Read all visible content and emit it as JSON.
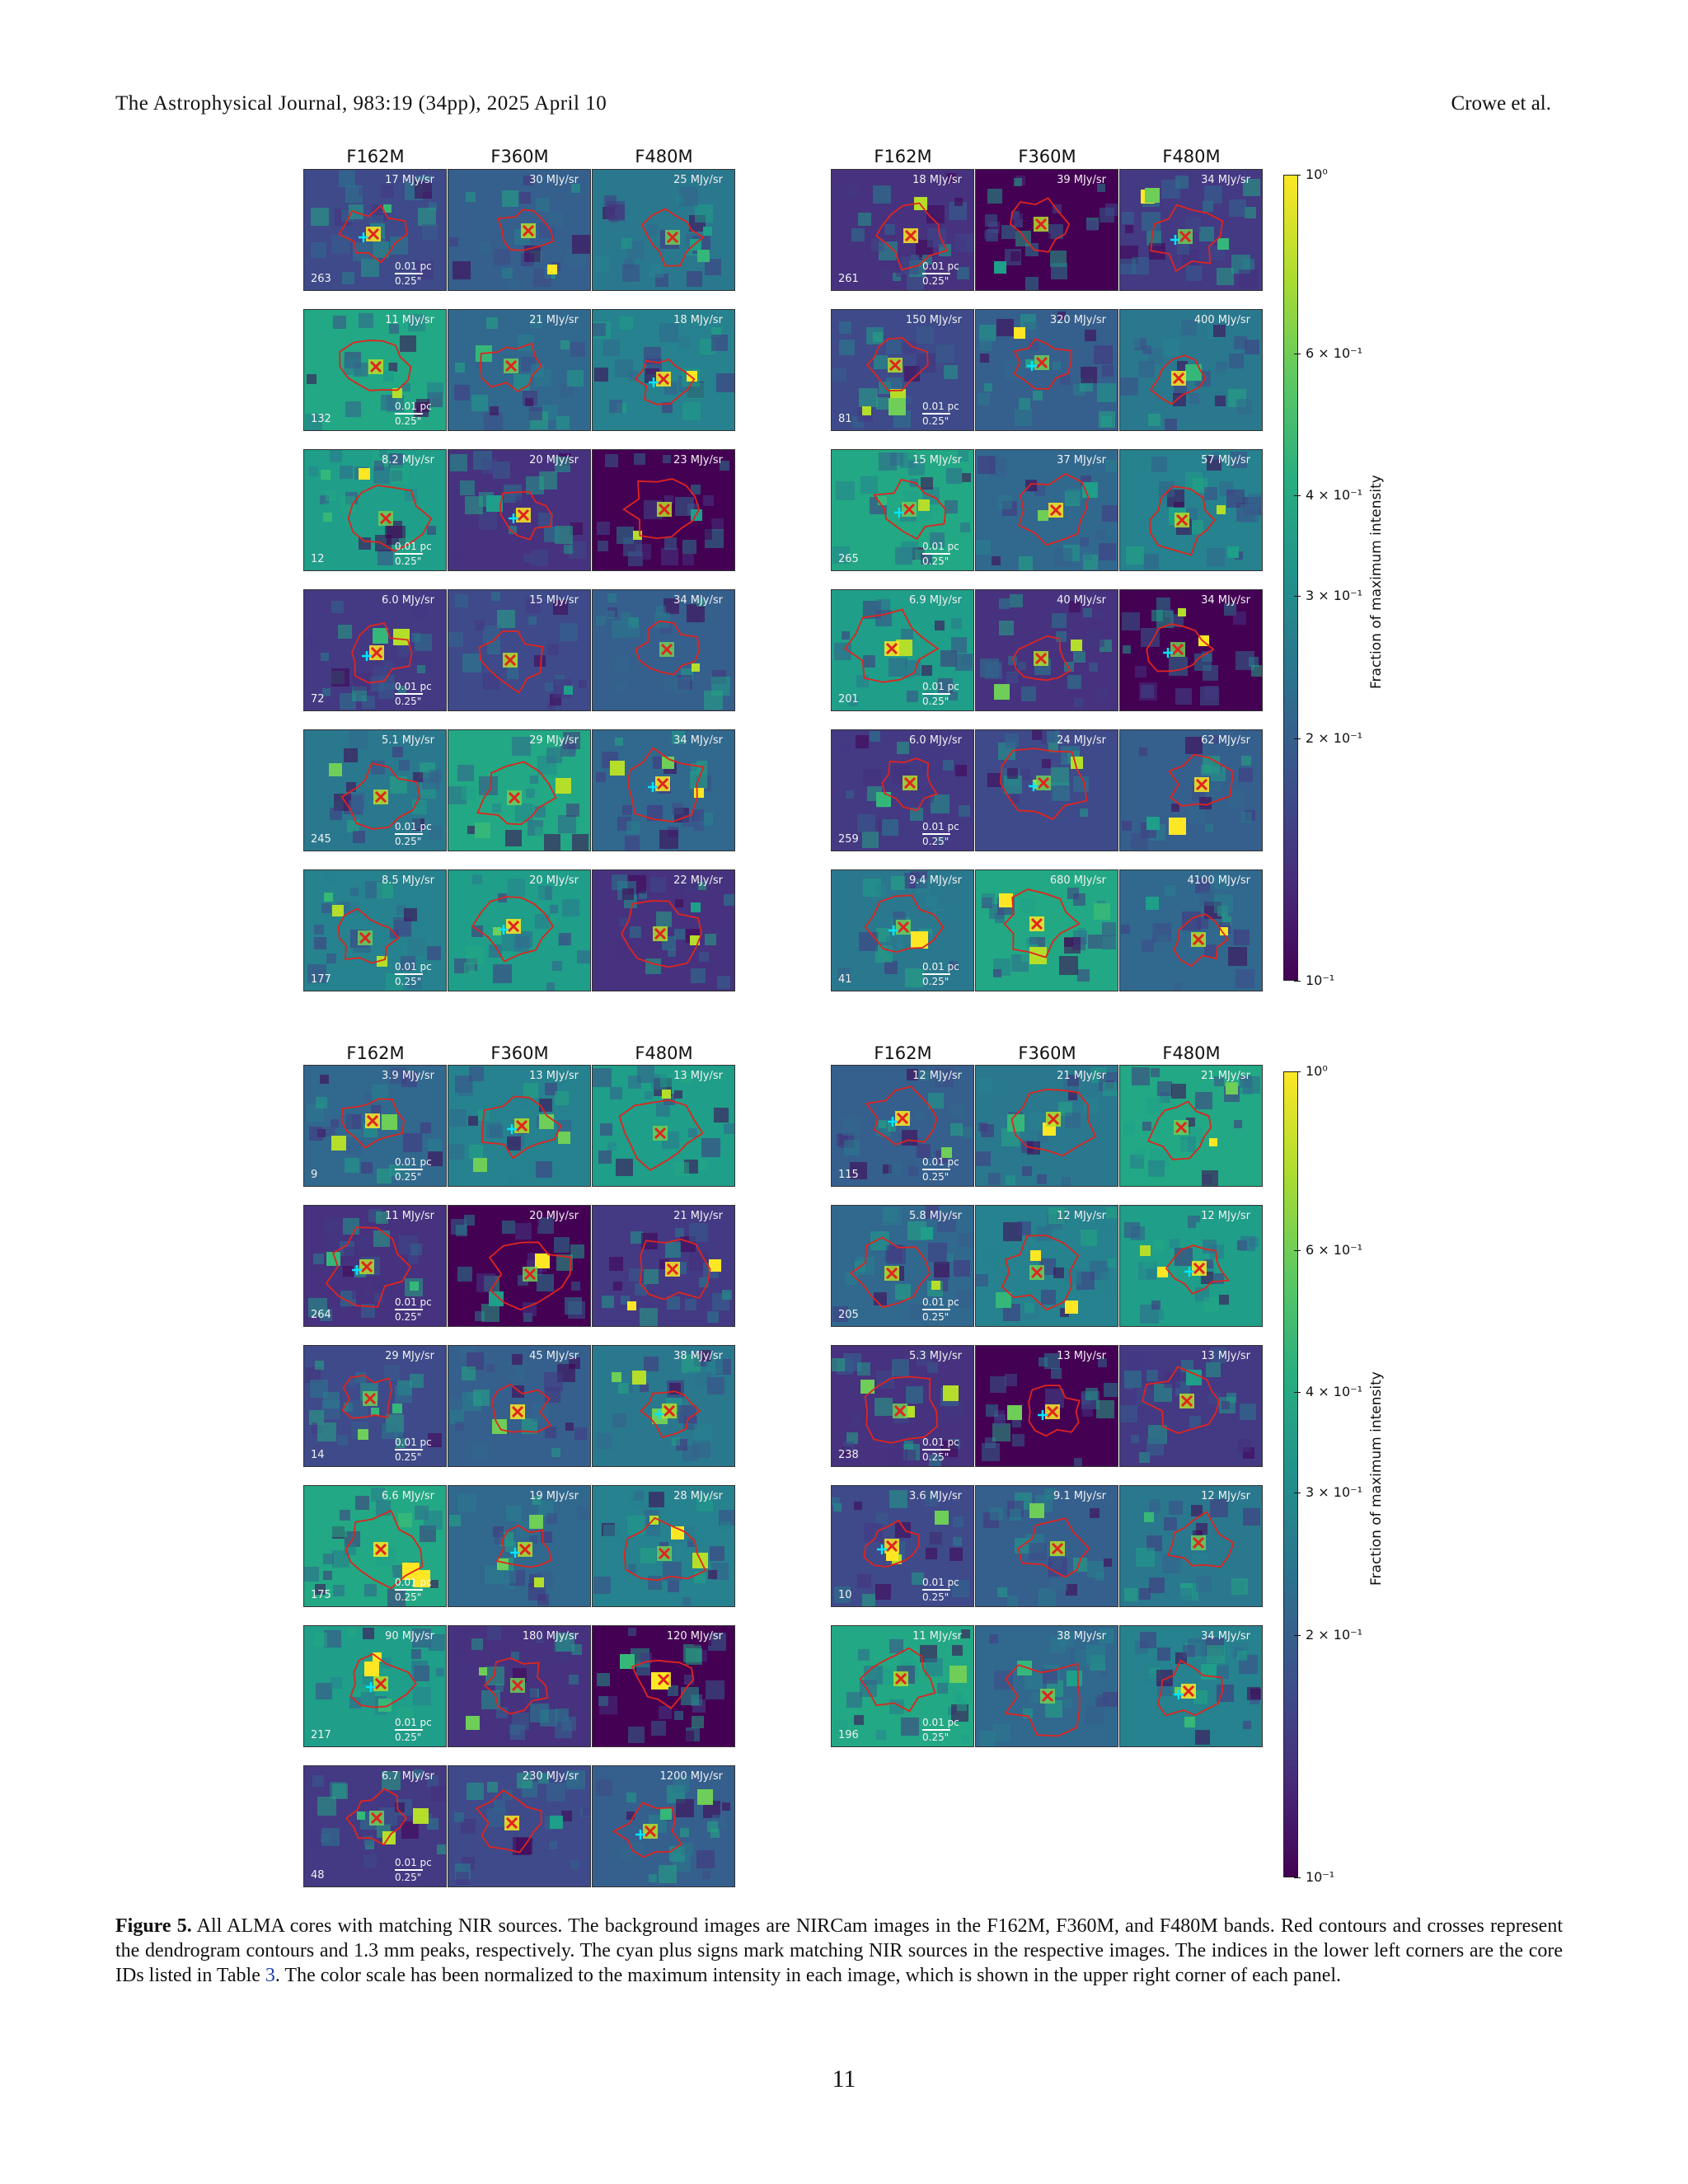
{
  "header": {
    "journal": "The Astrophysical Journal, 983:19 (34pp), 2025 April 10",
    "authors": "Crowe et al."
  },
  "figure": {
    "bands": [
      "F162M",
      "F360M",
      "F480M"
    ],
    "scalebar": {
      "pc": "0.01 pc",
      "arcsec": "0.25\""
    },
    "colorbar": {
      "label": "Fraction of maximum intensity",
      "ticks": [
        "10⁰",
        "6 × 10⁻¹",
        "4 × 10⁻¹",
        "3 × 10⁻¹",
        "2 × 10⁻¹",
        "10⁻¹"
      ],
      "tick_values": [
        1.0,
        0.6,
        0.4,
        0.3,
        0.2,
        0.1
      ],
      "scale": "log",
      "colormap": "viridis"
    },
    "groups": [
      {
        "rows": [
          {
            "id": "263",
            "v": [
              "17 MJy/sr",
              "30 MJy/sr",
              "25 MJy/sr"
            ]
          },
          {
            "id": "132",
            "v": [
              "11 MJy/sr",
              "21 MJy/sr",
              "18 MJy/sr"
            ]
          },
          {
            "id": "12",
            "v": [
              "8.2 MJy/sr",
              "20 MJy/sr",
              "23 MJy/sr"
            ]
          },
          {
            "id": "72",
            "v": [
              "6.0 MJy/sr",
              "15 MJy/sr",
              "34 MJy/sr"
            ]
          },
          {
            "id": "245",
            "v": [
              "5.1 MJy/sr",
              "29 MJy/sr",
              "34 MJy/sr"
            ]
          },
          {
            "id": "177",
            "v": [
              "8.5 MJy/sr",
              "20 MJy/sr",
              "22 MJy/sr"
            ]
          }
        ]
      },
      {
        "rows": [
          {
            "id": "261",
            "v": [
              "18 MJy/sr",
              "39 MJy/sr",
              "34 MJy/sr"
            ]
          },
          {
            "id": "81",
            "v": [
              "150 MJy/sr",
              "320 MJy/sr",
              "400 MJy/sr"
            ]
          },
          {
            "id": "265",
            "v": [
              "15 MJy/sr",
              "37 MJy/sr",
              "57 MJy/sr"
            ]
          },
          {
            "id": "201",
            "v": [
              "6.9 MJy/sr",
              "40 MJy/sr",
              "34 MJy/sr"
            ]
          },
          {
            "id": "259",
            "v": [
              "6.0 MJy/sr",
              "24 MJy/sr",
              "62 MJy/sr"
            ]
          },
          {
            "id": "41",
            "v": [
              "9.4 MJy/sr",
              "680 MJy/sr",
              "4100 MJy/sr"
            ]
          }
        ]
      },
      {
        "rows": [
          {
            "id": "9",
            "v": [
              "3.9 MJy/sr",
              "13 MJy/sr",
              "13 MJy/sr"
            ]
          },
          {
            "id": "264",
            "v": [
              "11 MJy/sr",
              "20 MJy/sr",
              "21 MJy/sr"
            ]
          },
          {
            "id": "14",
            "v": [
              "29 MJy/sr",
              "45 MJy/sr",
              "38 MJy/sr"
            ]
          },
          {
            "id": "175",
            "v": [
              "6.6 MJy/sr",
              "19 MJy/sr",
              "28 MJy/sr"
            ]
          },
          {
            "id": "217",
            "v": [
              "90 MJy/sr",
              "180 MJy/sr",
              "120 MJy/sr"
            ]
          },
          {
            "id": "48",
            "v": [
              "6.7 MJy/sr",
              "230 MJy/sr",
              "1200 MJy/sr"
            ]
          }
        ]
      },
      {
        "rows": [
          {
            "id": "115",
            "v": [
              "12 MJy/sr",
              "21 MJy/sr",
              "21 MJy/sr"
            ]
          },
          {
            "id": "205",
            "v": [
              "5.8 MJy/sr",
              "12 MJy/sr",
              "12 MJy/sr"
            ]
          },
          {
            "id": "238",
            "v": [
              "5.3 MJy/sr",
              "13 MJy/sr",
              "13 MJy/sr"
            ]
          },
          {
            "id": "10",
            "v": [
              "3.6 MJy/sr",
              "9.1 MJy/sr",
              "12 MJy/sr"
            ]
          },
          {
            "id": "196",
            "v": [
              "11 MJy/sr",
              "38 MJy/sr",
              "34 MJy/sr"
            ]
          }
        ]
      }
    ]
  },
  "caption": {
    "label": "Figure 5.",
    "text_before": " All ALMA cores with matching NIR sources. The background images are NIRCam images in the F162M, F360M, and F480M bands. Red contours and crosses represent the dendrogram contours and 1.3 mm peaks, respectively. The cyan plus signs mark matching NIR sources in the respective images. The indices in the lower left corners are the core IDs listed in Table ",
    "table_ref": "3",
    "text_after": ". The color scale has been normalized to the maximum intensity in each image, which is shown in the upper right corner of each panel."
  },
  "page_number": "11"
}
